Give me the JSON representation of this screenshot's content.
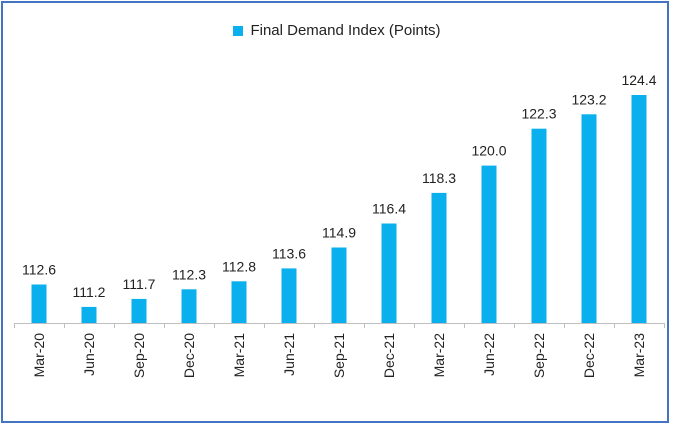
{
  "chart_data": {
    "type": "bar",
    "categories": [
      "Mar-20",
      "Jun-20",
      "Sep-20",
      "Dec-20",
      "Mar-21",
      "Jun-21",
      "Sep-21",
      "Dec-21",
      "Mar-22",
      "Jun-22",
      "Sep-22",
      "Dec-22",
      "Mar-23"
    ],
    "series": [
      {
        "name": "Final Demand Index (Points)",
        "values": [
          112.6,
          111.2,
          111.7,
          112.3,
          112.8,
          113.6,
          114.9,
          116.4,
          118.3,
          120.0,
          122.3,
          123.2,
          124.4
        ],
        "color": "#0ab0ee"
      }
    ],
    "title": "",
    "xlabel": "",
    "ylabel": "",
    "ylim": [
      110.2,
      124.4
    ],
    "legend_position": "top-center",
    "data_labels": true,
    "grid": false
  }
}
